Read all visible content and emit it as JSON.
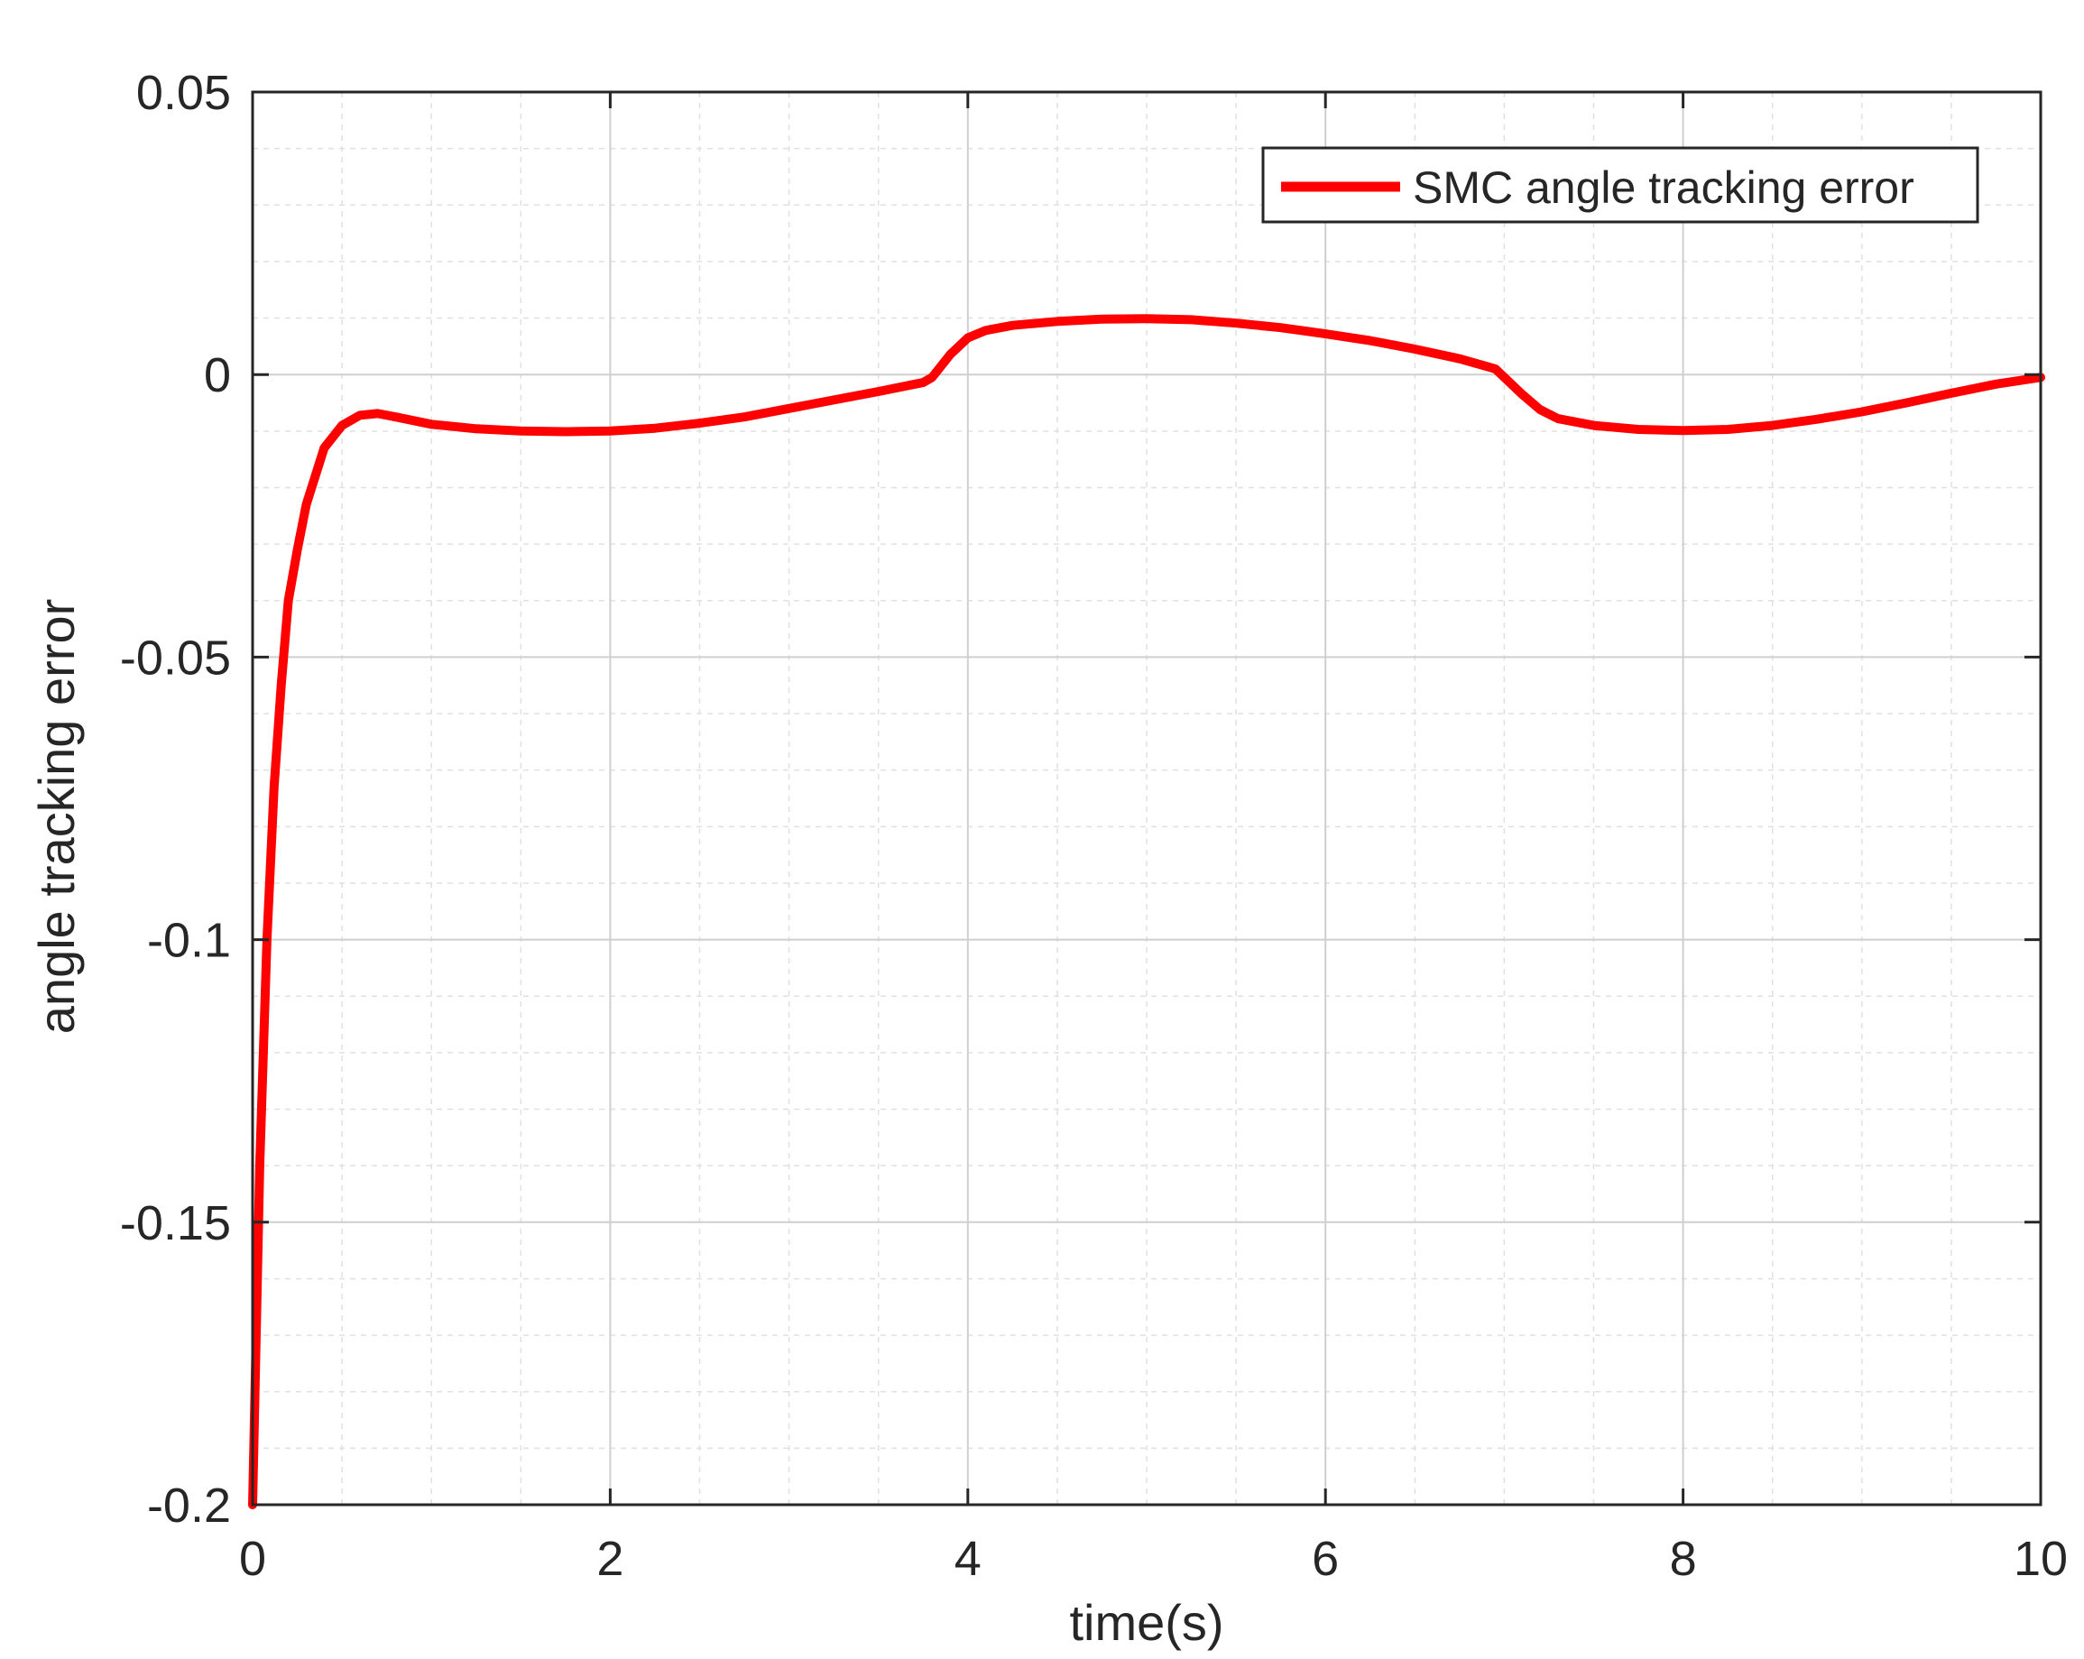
{
  "chart_data": {
    "type": "line",
    "title": "",
    "xlabel": "time(s)",
    "ylabel": "angle tracking error",
    "xlim": [
      0,
      10
    ],
    "ylim": [
      -0.2,
      0.05
    ],
    "xticks": [
      0,
      2,
      4,
      6,
      8,
      10
    ],
    "xtick_labels": [
      "0",
      "2",
      "4",
      "6",
      "8",
      "10"
    ],
    "yticks": [
      -0.2,
      -0.15,
      -0.1,
      -0.05,
      0,
      0.05
    ],
    "ytick_labels": [
      "-0.2",
      "-0.15",
      "-0.1",
      "-0.05",
      "0",
      "0.05"
    ],
    "grid": true,
    "minor_grid": true,
    "legend_position": "top-right",
    "series": [
      {
        "name": "SMC angle tracking error",
        "color": "#ff0000",
        "x": [
          0,
          0.04,
          0.08,
          0.12,
          0.16,
          0.2,
          0.25,
          0.3,
          0.4,
          0.5,
          0.6,
          0.7,
          0.8,
          1.0,
          1.25,
          1.5,
          1.75,
          2.0,
          2.25,
          2.5,
          2.75,
          3.0,
          3.25,
          3.5,
          3.75,
          3.8,
          3.9,
          4.0,
          4.1,
          4.25,
          4.5,
          4.75,
          5.0,
          5.25,
          5.5,
          5.75,
          6.0,
          6.25,
          6.5,
          6.75,
          6.95,
          7.0,
          7.1,
          7.2,
          7.3,
          7.5,
          7.75,
          8.0,
          8.25,
          8.5,
          8.75,
          9.0,
          9.25,
          9.5,
          9.75,
          10.0
        ],
        "y": [
          -0.2,
          -0.14,
          -0.1,
          -0.073,
          -0.055,
          -0.04,
          -0.031,
          -0.023,
          -0.013,
          -0.009,
          -0.0072,
          -0.0069,
          -0.0075,
          -0.0088,
          -0.0096,
          -0.01,
          -0.0101,
          -0.01,
          -0.0095,
          -0.0086,
          -0.0075,
          -0.006,
          -0.0045,
          -0.003,
          -0.0014,
          -0.0005,
          0.0035,
          0.0065,
          0.0078,
          0.0087,
          0.0094,
          0.0098,
          0.0099,
          0.0097,
          0.0091,
          0.0083,
          0.0072,
          0.006,
          0.0045,
          0.0028,
          0.001,
          -0.0005,
          -0.0035,
          -0.0062,
          -0.0078,
          -0.009,
          -0.0097,
          -0.0099,
          -0.0097,
          -0.009,
          -0.0079,
          -0.0066,
          -0.005,
          -0.0033,
          -0.0017,
          -0.0005
        ]
      }
    ]
  }
}
